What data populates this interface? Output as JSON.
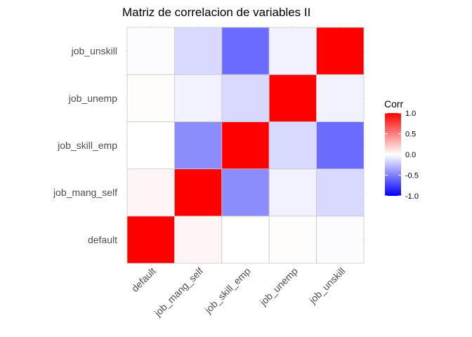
{
  "chart_data": {
    "type": "heatmap",
    "title": "Matriz de correlacion de variables II",
    "x_categories": [
      "default",
      "job_mang_self",
      "job_skill_emp",
      "job_unemp",
      "job_unskill"
    ],
    "y_categories": [
      "default",
      "job_mang_self",
      "job_skill_emp",
      "job_unemp",
      "job_unskill"
    ],
    "values": [
      [
        1.0,
        0.04,
        0.0,
        0.01,
        -0.01
      ],
      [
        0.04,
        1.0,
        -0.45,
        -0.05,
        -0.15
      ],
      [
        0.0,
        -0.45,
        1.0,
        -0.15,
        -0.58
      ],
      [
        0.01,
        -0.05,
        -0.15,
        1.0,
        -0.05
      ],
      [
        -0.01,
        -0.15,
        -0.58,
        -0.05,
        1.0
      ]
    ],
    "legend": {
      "title": "Corr",
      "ticks": [
        "1.0",
        "0.5",
        "0.0",
        "-0.5",
        "-1.0"
      ],
      "tick_values": [
        1.0,
        0.5,
        0.0,
        -0.5,
        -1.0
      ],
      "range": [
        -1.0,
        1.0
      ],
      "colors": {
        "low": "#0000ff",
        "mid": "#ffffff",
        "high": "#ff0000"
      },
      "placement": "right"
    },
    "grid": true
  }
}
